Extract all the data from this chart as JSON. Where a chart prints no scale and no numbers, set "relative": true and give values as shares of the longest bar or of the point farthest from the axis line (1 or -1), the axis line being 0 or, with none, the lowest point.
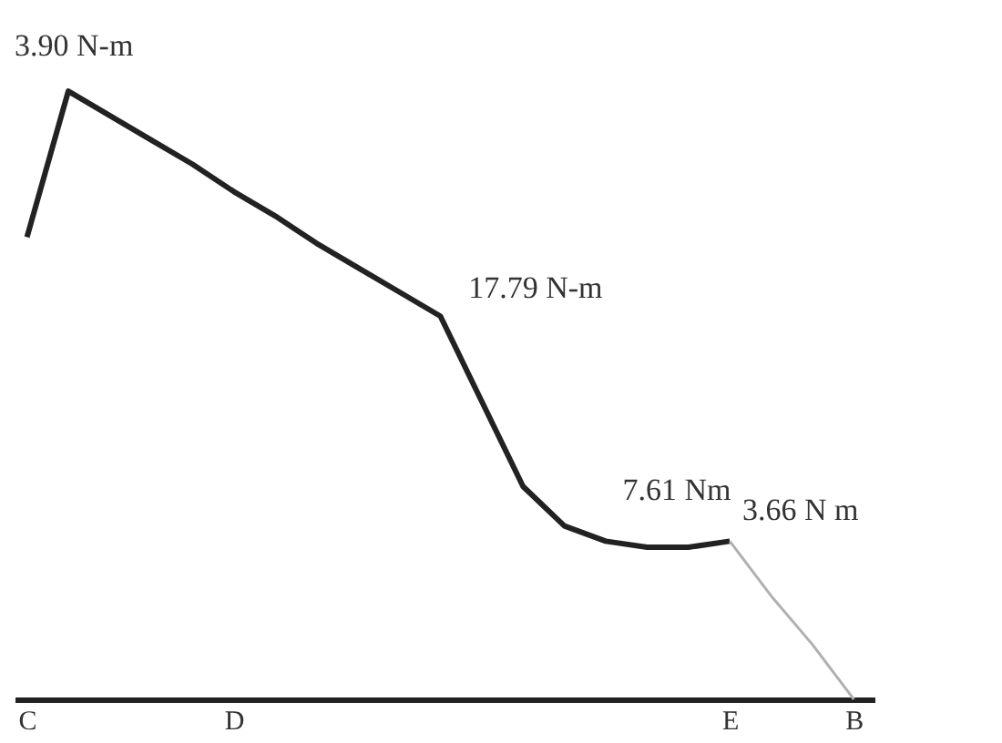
{
  "chart_data": {
    "type": "line",
    "relative": true,
    "categories": [
      "C",
      null,
      null,
      null,
      null,
      "D",
      null,
      null,
      null,
      null,
      null,
      null,
      null,
      null,
      null,
      null,
      null,
      "E",
      null,
      null,
      "B"
    ],
    "series": [
      {
        "color": "#222222",
        "values": [
          0.76,
          1,
          0.96,
          0.92,
          0.88,
          0.835,
          0.795,
          0.75,
          0.71,
          0.67,
          0.63,
          0.49,
          0.35,
          0.285,
          0.26,
          0.25,
          0.25,
          0.26,
          null,
          null,
          null
        ]
      },
      {
        "color": "#b0b0b0",
        "values": [
          null,
          null,
          null,
          null,
          null,
          null,
          null,
          null,
          null,
          null,
          null,
          null,
          null,
          null,
          null,
          null,
          null,
          0.26,
          0.17,
          0.09,
          0
        ]
      }
    ],
    "annotations": [
      "3.90 N-m",
      "17.79 N-m",
      "7.61 Nm",
      "3.66 N m"
    ],
    "grid": false,
    "marker": "none",
    "line_style": "solid"
  }
}
